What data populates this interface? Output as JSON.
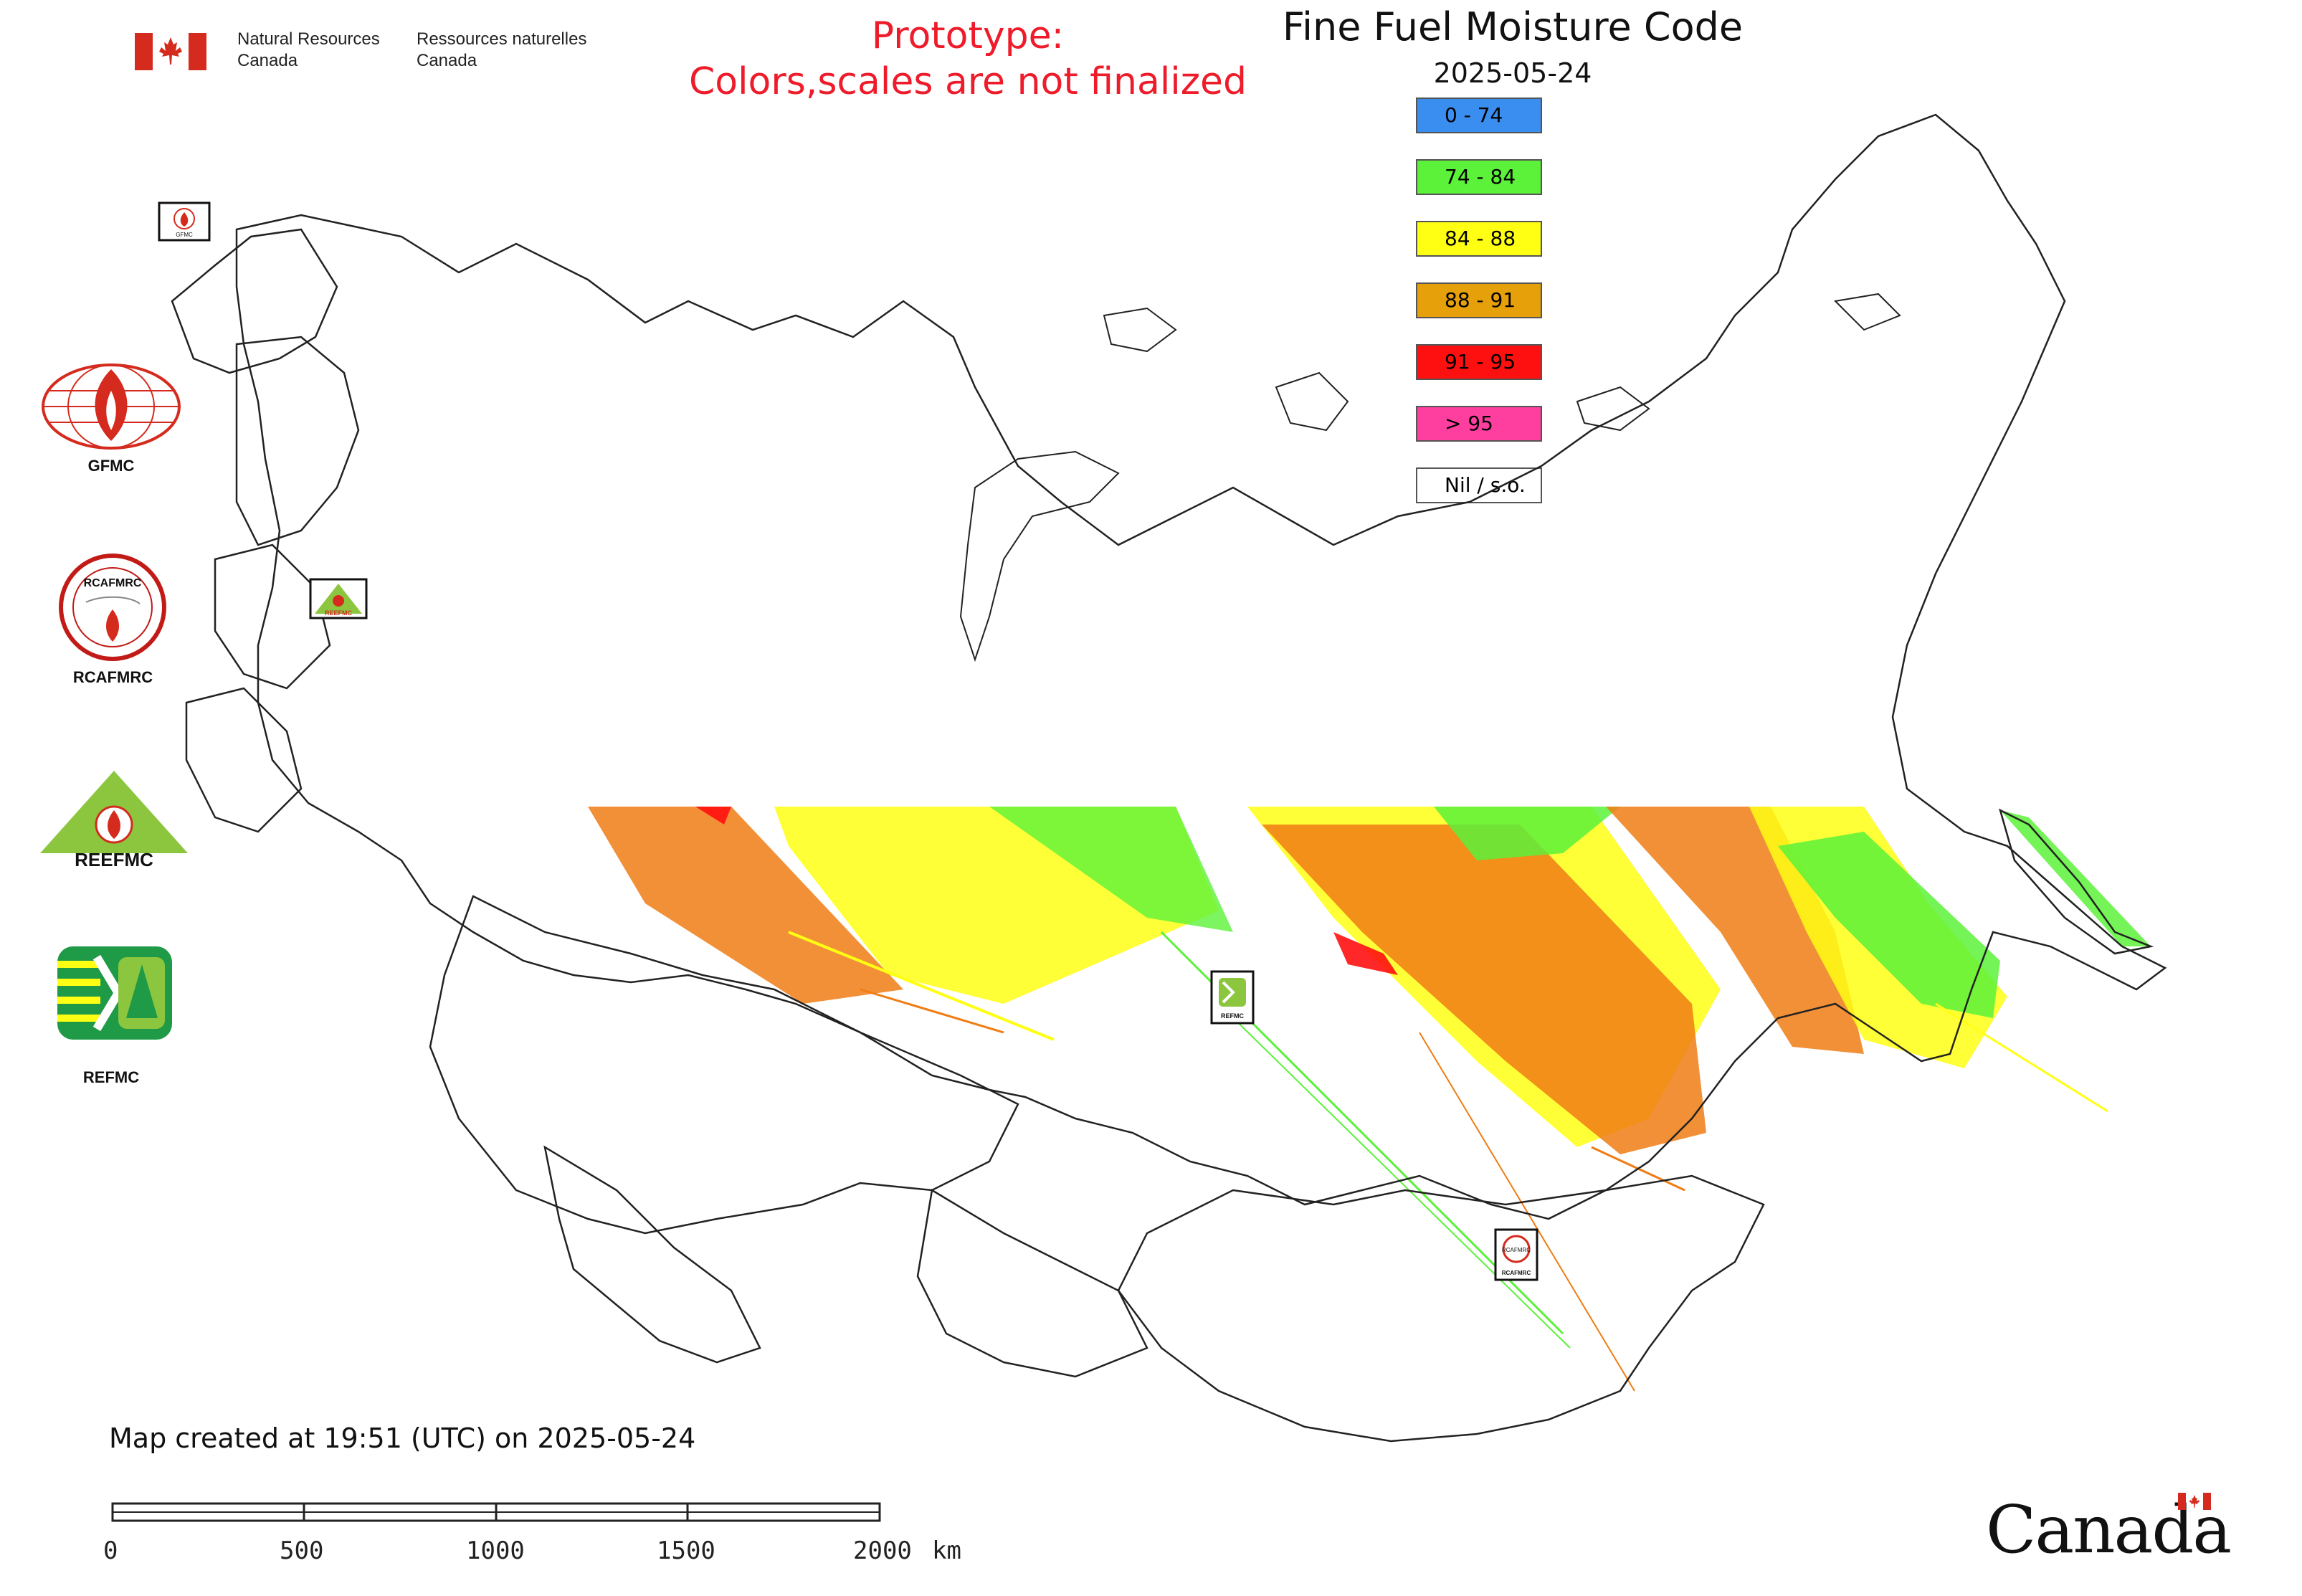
{
  "header": {
    "agency_en_line1": "Natural Resources",
    "agency_en_line2": "Canada",
    "agency_fr_line1": "Ressources naturelles",
    "agency_fr_line2": "Canada",
    "prototype_line1": "Prototype:",
    "prototype_line2": "Colors,scales are not finalized"
  },
  "map": {
    "title": "Fine Fuel Moisture Code",
    "date": "2025-05-24",
    "created_note": "Map created at 19:51 (UTC) on 2025-05-24"
  },
  "legend": [
    {
      "label": "0 - 74",
      "color": "#3a8ef0"
    },
    {
      "label": "74 - 84",
      "color": "#5cf23a"
    },
    {
      "label": "84 - 88",
      "color": "#ffff14"
    },
    {
      "label": "88 - 91",
      "color": "#e6a00a"
    },
    {
      "label": "91 - 95",
      "color": "#ff1010"
    },
    {
      "label": "> 95",
      "color": "#ff3fa0"
    },
    {
      "label": "Nil / s.o.",
      "color": "#ffffff"
    }
  ],
  "logos": [
    {
      "label": "GFMC"
    },
    {
      "label": "RCAFMRC"
    },
    {
      "label": "REEFMC"
    },
    {
      "label": "REFMC"
    }
  ],
  "map_markers": {
    "gfmc": "GFMC",
    "reefmc": "REEFMC",
    "refmc": "REFMC",
    "rcafmrc": "RCAFMRC"
  },
  "rcafmrc_badge_text": "RCAFMRC",
  "scale_bar": {
    "ticks": [
      "0",
      "500",
      "1000",
      "1500",
      "2000"
    ],
    "unit": "km"
  },
  "watermark": "Canada",
  "colors": {
    "prototype_text": "#ee1c2b",
    "canada_red": "#d52b1e",
    "fire_orange": "#f07c14"
  }
}
